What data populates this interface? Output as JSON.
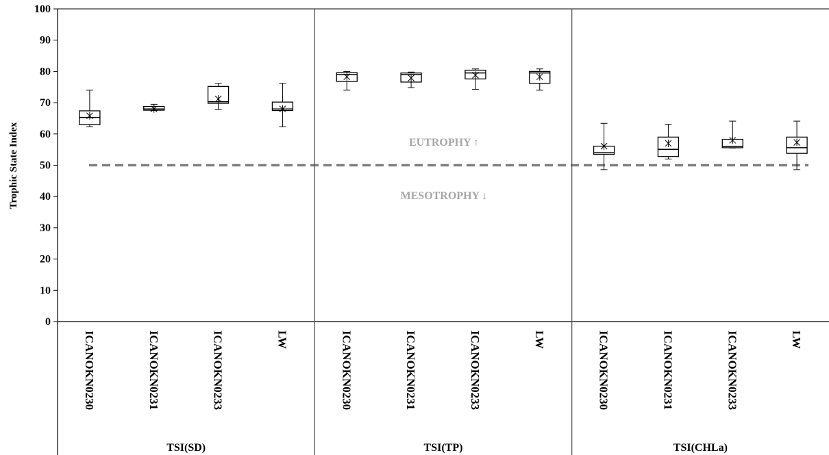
{
  "chart_data": {
    "type": "box",
    "ylabel": "Trophic State Index",
    "ylim": [
      0,
      100
    ],
    "yticks": [
      0,
      10,
      20,
      30,
      40,
      50,
      60,
      70,
      80,
      90,
      100
    ],
    "reference_line": {
      "y": 50,
      "style": "dashed",
      "color": "#808080"
    },
    "annotations": [
      {
        "text": "EUTROPHY ↑",
        "y": 57.5
      },
      {
        "text": "MESOTROPHY ↓",
        "y": 40.5
      }
    ],
    "groups": [
      {
        "name": "TSI(SD)",
        "categories": [
          "ICANOKN0230",
          "ICANOKN0231",
          "ICANOKN0233",
          "LW"
        ],
        "boxes": [
          {
            "min": 62.3,
            "q1": 63.0,
            "median": 65.3,
            "q3": 67.4,
            "max": 74.0,
            "mean": 65.8
          },
          {
            "min": 67.5,
            "q1": 67.6,
            "median": 68.0,
            "q3": 68.8,
            "max": 69.5,
            "mean": 68.0
          },
          {
            "min": 67.8,
            "q1": 69.8,
            "median": 70.3,
            "q3": 75.2,
            "max": 76.2,
            "mean": 71.2
          },
          {
            "min": 62.3,
            "q1": 67.5,
            "median": 68.0,
            "q3": 70.2,
            "max": 76.2,
            "mean": 68.0
          }
        ]
      },
      {
        "name": "TSI(TP)",
        "categories": [
          "ICANOKN0230",
          "ICANOKN0231",
          "ICANOKN0233",
          "LW"
        ],
        "boxes": [
          {
            "min": 74.0,
            "q1": 76.8,
            "median": 79.0,
            "q3": 79.6,
            "max": 80.0,
            "mean": 78.3
          },
          {
            "min": 74.8,
            "q1": 76.6,
            "median": 79.0,
            "q3": 79.5,
            "max": 79.8,
            "mean": 77.9
          },
          {
            "min": 74.3,
            "q1": 77.6,
            "median": 79.5,
            "q3": 80.4,
            "max": 80.8,
            "mean": 78.8
          },
          {
            "min": 74.0,
            "q1": 76.2,
            "median": 79.5,
            "q3": 80.0,
            "max": 80.8,
            "mean": 78.3
          }
        ]
      },
      {
        "name": "TSI(CHLa)",
        "categories": [
          "ICANOKN0230",
          "ICANOKN0231",
          "ICANOKN0233",
          "LW"
        ],
        "boxes": [
          {
            "min": 48.6,
            "q1": 53.5,
            "median": 54.0,
            "q3": 56.1,
            "max": 63.4,
            "mean": 56.1
          },
          {
            "min": 52.0,
            "q1": 52.8,
            "median": 55.1,
            "q3": 59.0,
            "max": 63.1,
            "mean": 57.0
          },
          {
            "min": 55.5,
            "q1": 55.6,
            "median": 56.0,
            "q3": 58.3,
            "max": 64.1,
            "mean": 58.0
          },
          {
            "min": 48.6,
            "q1": 53.8,
            "median": 55.6,
            "q3": 59.0,
            "max": 64.1,
            "mean": 57.3
          }
        ]
      }
    ]
  }
}
